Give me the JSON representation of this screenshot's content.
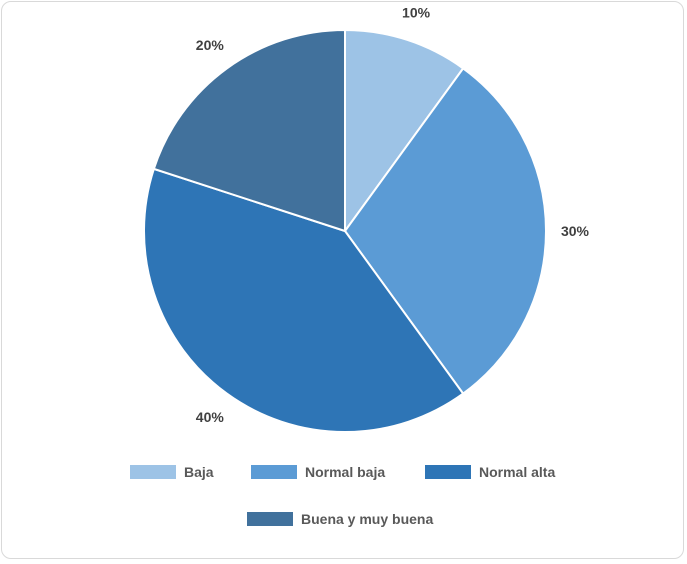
{
  "chart_data": {
    "type": "pie",
    "categories": [
      "Baja",
      "Normal baja",
      "Normal alta",
      "Buena y muy buena"
    ],
    "values": [
      10,
      30,
      40,
      20
    ],
    "value_labels": [
      "10%",
      "30%",
      "40%",
      "20%"
    ],
    "colors": [
      "#9dc3e6",
      "#5b9bd5",
      "#2e75b6",
      "#41719c"
    ],
    "start_angle": "12 o'clock",
    "direction": "clockwise",
    "legend_position": "bottom"
  }
}
